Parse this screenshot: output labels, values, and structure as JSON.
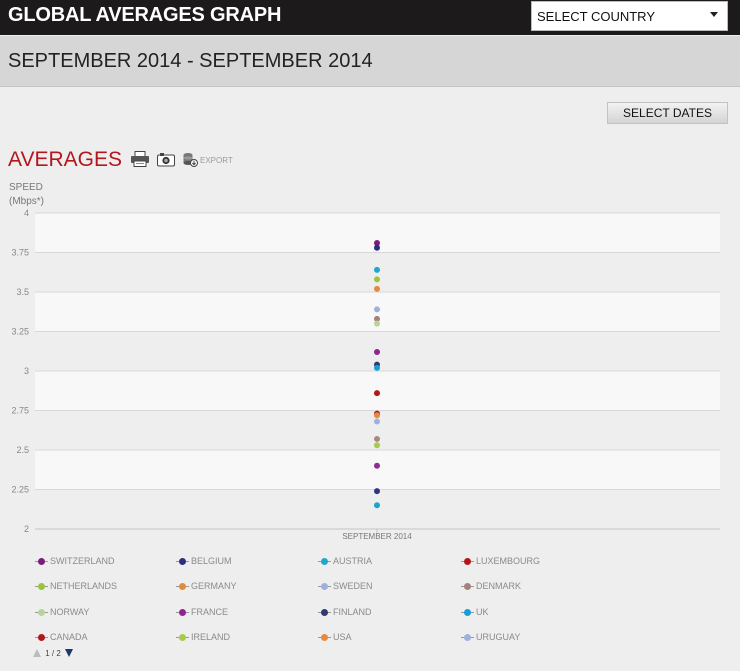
{
  "header": {
    "title": "GLOBAL AVERAGES GRAPH",
    "country_select": "SELECT COUNTRY"
  },
  "date_range": "SEPTEMBER 2014 - SEPTEMBER 2014",
  "select_dates_label": "SELECT DATES",
  "section": {
    "title": "AVERAGES",
    "export_label": "EXPORT",
    "icons": [
      "print-icon",
      "camera-icon",
      "export-icon"
    ]
  },
  "chart_data": {
    "type": "scatter",
    "title": "",
    "ylabel_line1": "SPEED",
    "ylabel_line2": "(Mbps*)",
    "categories": [
      "SEPTEMBER 2014"
    ],
    "y_ticks": [
      "4",
      "3.75",
      "3.5",
      "3.25",
      "3",
      "2.75",
      "2.5",
      "2.25",
      "2"
    ],
    "ylim": [
      2,
      4
    ],
    "grid": true,
    "legend_position": "bottom",
    "series": [
      {
        "name": "SWITZERLAND",
        "color": "#7b1d7e",
        "value": 3.81
      },
      {
        "name": "BELGIUM",
        "color": "#2c2e7f",
        "value": 3.78
      },
      {
        "name": "AUSTRIA",
        "color": "#1ba8d1",
        "value": 3.64
      },
      {
        "name": "LUXEMBOURG",
        "color": "#b3171c",
        "value": 2.86
      },
      {
        "name": "NETHERLANDS",
        "color": "#9ac43c",
        "value": 3.58
      },
      {
        "name": "GERMANY",
        "color": "#e48a3e",
        "value": 3.52
      },
      {
        "name": "SWEDEN",
        "color": "#9fb1db",
        "value": 3.39
      },
      {
        "name": "DENMARK",
        "color": "#a4817a",
        "value": 3.33
      },
      {
        "name": "NORWAY",
        "color": "#b7d59b",
        "value": 3.3
      },
      {
        "name": "FRANCE",
        "color": "#8e2592",
        "value": 3.12
      },
      {
        "name": "FINLAND",
        "color": "#2f3978",
        "value": 3.04
      },
      {
        "name": "UK",
        "color": "#139fd7",
        "value": 3.02
      },
      {
        "name": "CANADA",
        "color": "#ae1820",
        "value": 2.73
      },
      {
        "name": "IRELAND",
        "color": "#a6cb45",
        "value": 2.53
      },
      {
        "name": "USA",
        "color": "#e8893d",
        "value": 2.72
      },
      {
        "name": "URUGUAY",
        "color": "#9fb1dc",
        "value": 2.68
      }
    ],
    "extra_points": [
      {
        "color": "#a68a82",
        "value": 2.57
      },
      {
        "color": "#952a93",
        "value": 2.4
      },
      {
        "color": "#2f3480",
        "value": 2.24
      },
      {
        "color": "#1aa5d0",
        "value": 2.15
      }
    ]
  },
  "pager": {
    "text": "1 / 2"
  }
}
